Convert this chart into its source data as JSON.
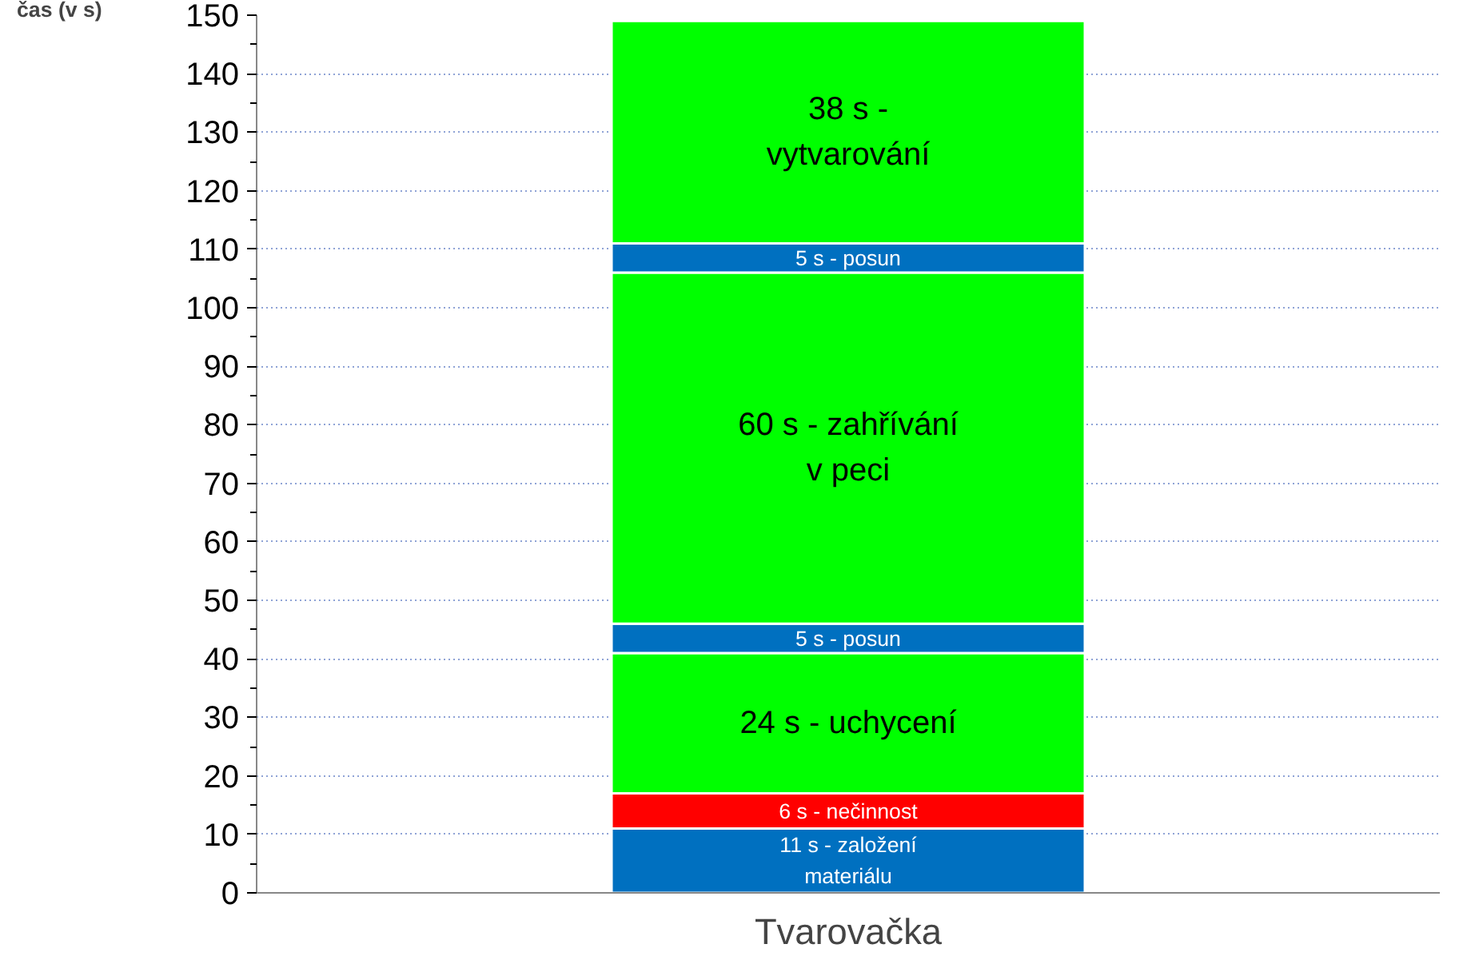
{
  "chart_data": {
    "type": "bar",
    "stacked": true,
    "ylabel": "čas (v s)",
    "categories": [
      "Tvarovačka"
    ],
    "ylim": [
      0,
      150
    ],
    "yticks": [
      0,
      10,
      20,
      30,
      40,
      50,
      60,
      70,
      80,
      90,
      100,
      110,
      120,
      130,
      140,
      150
    ],
    "grid": "y",
    "series": [
      {
        "color": "#0070c0",
        "values": [
          11
        ],
        "value_labels": [
          "11 s - založení materiálu"
        ]
      },
      {
        "color": "#ff0000",
        "values": [
          6
        ],
        "value_labels": [
          "6 s - nečinnost"
        ]
      },
      {
        "color": "#00ff00",
        "values": [
          24
        ],
        "value_labels": [
          "24 s - uchycení"
        ]
      },
      {
        "color": "#0070c0",
        "values": [
          5
        ],
        "value_labels": [
          "5 s - posun"
        ]
      },
      {
        "color": "#00ff00",
        "values": [
          60
        ],
        "value_labels": [
          "60 s - zahřívání  v peci"
        ]
      },
      {
        "color": "#0070c0",
        "values": [
          5
        ],
        "value_labels": [
          "5 s - posun"
        ]
      },
      {
        "color": "#00ff00",
        "values": [
          38
        ],
        "value_labels": [
          "38 s - vytvarování"
        ]
      }
    ]
  }
}
